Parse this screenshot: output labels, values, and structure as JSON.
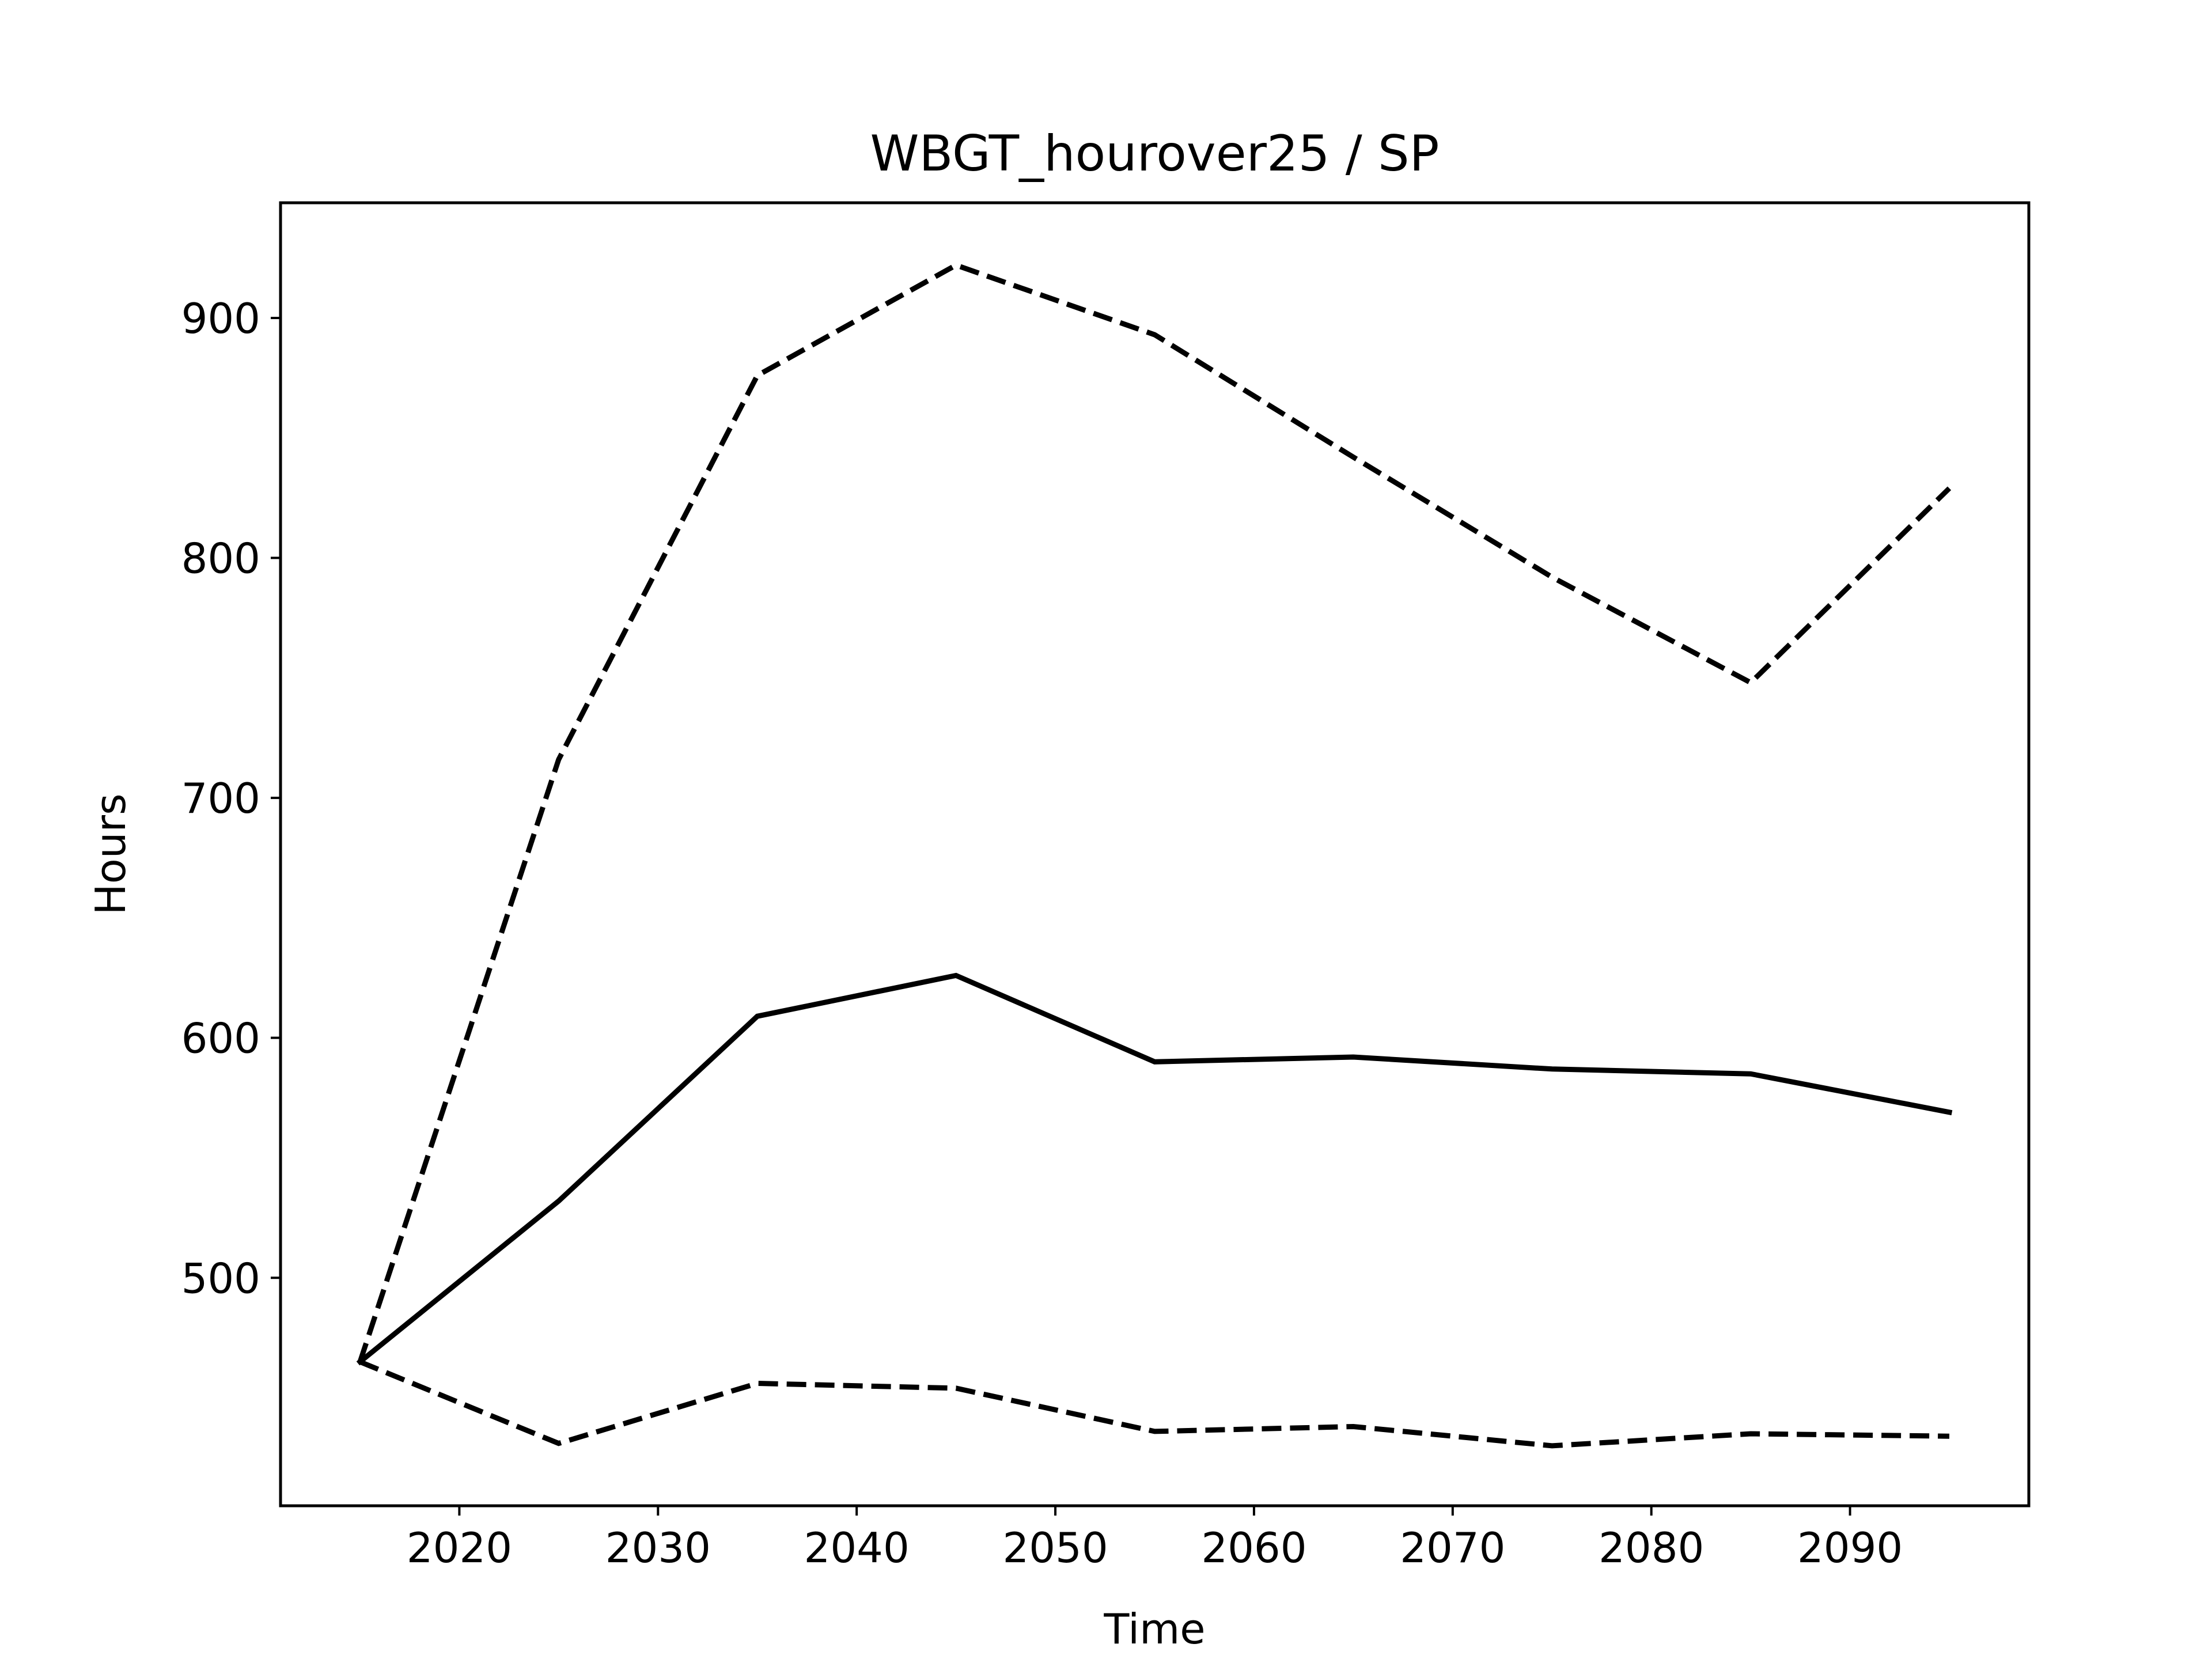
{
  "chart_data": {
    "type": "line",
    "title": "WBGT_hourover25 / SP",
    "xlabel": "Time",
    "ylabel": "Hours",
    "x": [
      2015,
      2025,
      2035,
      2045,
      2055,
      2065,
      2075,
      2085,
      2095
    ],
    "xlim": [
      2011,
      2099
    ],
    "ylim": [
      405,
      948
    ],
    "xticks": [
      2020,
      2030,
      2040,
      2050,
      2060,
      2070,
      2080,
      2090
    ],
    "yticks": [
      500,
      600,
      700,
      800,
      900
    ],
    "grid": false,
    "legend": "none",
    "series": [
      {
        "style": "dashed",
        "color": "#000000",
        "values": [
          465,
          716,
          876,
          922,
          893,
          842,
          792,
          748,
          829
        ]
      },
      {
        "style": "solid",
        "color": "#000000",
        "values": [
          465,
          532,
          609,
          626,
          590,
          592,
          587,
          585,
          569
        ]
      },
      {
        "style": "dashed",
        "color": "#000000",
        "values": [
          465,
          431,
          456,
          454,
          436,
          438,
          430,
          435,
          434
        ]
      }
    ]
  }
}
